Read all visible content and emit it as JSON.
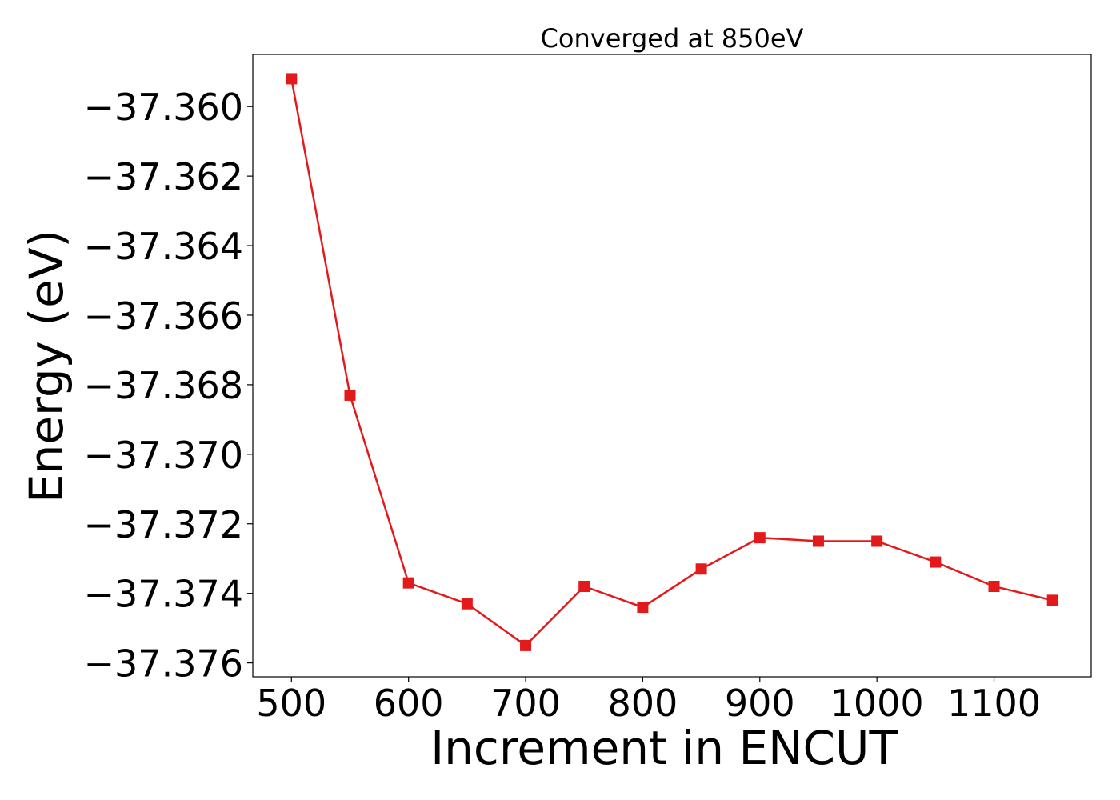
{
  "chart_data": {
    "type": "line",
    "title": "Converged at 850eV",
    "xlabel": "Increment in ENCUT",
    "ylabel": "Energy (eV)",
    "x": [
      500,
      550,
      600,
      650,
      700,
      750,
      800,
      850,
      900,
      950,
      1000,
      1050,
      1100,
      1150
    ],
    "series": [
      {
        "values": [
          -37.3592,
          -37.3683,
          -37.3737,
          -37.3743,
          -37.3755,
          -37.3738,
          -37.3744,
          -37.3733,
          -37.3724,
          -37.3725,
          -37.3725,
          -37.3731,
          -37.3738,
          -37.3742
        ],
        "color": "#e31a1c",
        "marker": "square"
      }
    ],
    "xlim": [
      467,
      1183
    ],
    "ylim": [
      -37.3764,
      -37.3585
    ],
    "xticks": [
      500,
      600,
      700,
      800,
      900,
      1000,
      1100
    ],
    "xtick_labels": [
      "500",
      "600",
      "700",
      "800",
      "900",
      "1000",
      "1100"
    ],
    "yticks": [
      -37.36,
      -37.362,
      -37.364,
      -37.366,
      -37.368,
      -37.37,
      -37.372,
      -37.374,
      -37.376
    ],
    "ytick_labels": [
      "−37.360",
      "−37.362",
      "−37.364",
      "−37.366",
      "−37.368",
      "−37.370",
      "−37.372",
      "−37.374",
      "−37.376"
    ],
    "grid": false,
    "legend": "none"
  }
}
